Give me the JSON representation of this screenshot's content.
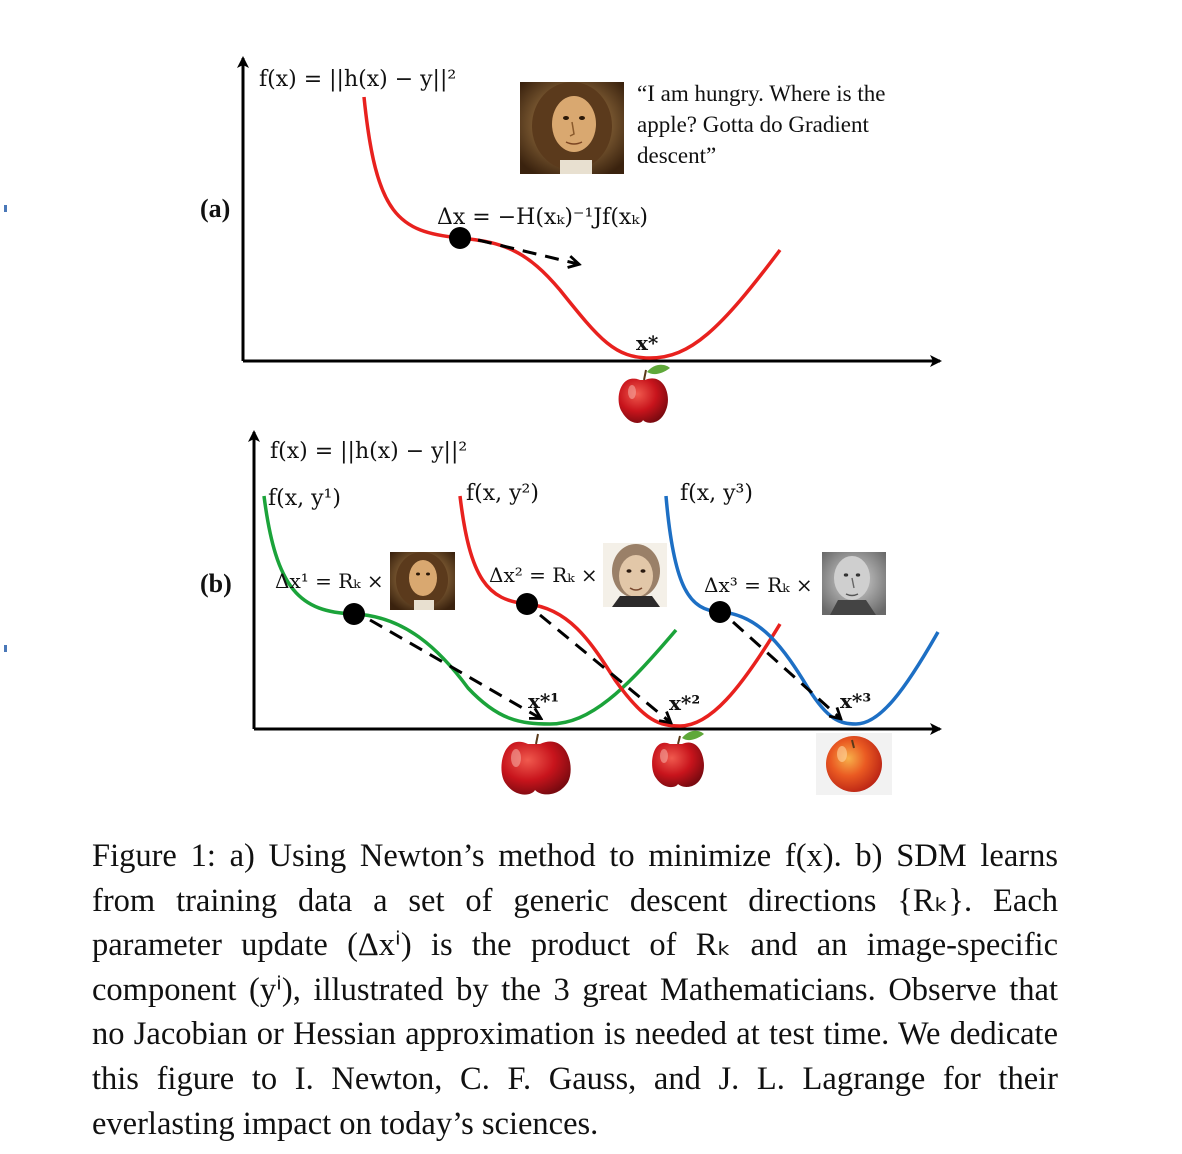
{
  "panel_a": {
    "label": "(a)",
    "objective": "f(x) = ||h(x) − y||²",
    "quote_lines": [
      "“I am hungry. Where is the",
      "apple? Gotta do Gradient",
      "descent”"
    ],
    "update_rule": "Δx = −H(xₖ)⁻¹Jf(xₖ)",
    "minimum_label": "x*",
    "portrait_icon": "newton-portrait-icon",
    "apple_icon": "apple-icon"
  },
  "panel_b": {
    "label": "(b)",
    "objective": "f(x) = ||h(x) − y||²",
    "curves": [
      {
        "label": "f(x, y¹)",
        "update": "Δx¹ = Rₖ ×",
        "minimum": "x*¹",
        "color": "#1ba33a",
        "portrait_icon": "newton-portrait-icon"
      },
      {
        "label": "f(x, y²)",
        "update": "Δx² = Rₖ ×",
        "minimum": "x*²",
        "color": "#e8211e",
        "portrait_icon": "gauss-portrait-icon"
      },
      {
        "label": "f(x, y³)",
        "update": "Δx³ = Rₖ ×",
        "minimum": "x*³",
        "color": "#1d6fc4",
        "portrait_icon": "lagrange-portrait-icon"
      }
    ]
  },
  "colors": {
    "red_curve": "#e8211e",
    "green_curve": "#1ba33a",
    "blue_curve": "#1d6fc4",
    "apple": "#c8141c"
  },
  "caption": {
    "label": "Figure 1:",
    "text": "a) Using Newton’s method to minimize f(x). b) SDM learns from training data a set of generic descent directions {Rₖ}. Each parameter update (Δxⁱ) is the product of Rₖ and an image-specific component (yⁱ), illustrated by the 3 great Mathematicians. Observe that no Jacobian or Hessian approximation is needed at test time. We dedicate this figure to I. Newton, C. F. Gauss, and J. L. Lagrange for their everlasting impact on today’s sciences."
  }
}
